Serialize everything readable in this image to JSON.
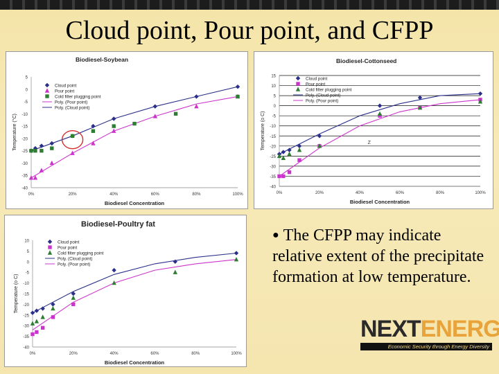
{
  "slide": {
    "title": "Cloud point, Pour point, and CFPP",
    "bullet": "The CFPP may indicate relative extent of the precipitate formation at low temperature."
  },
  "logo": {
    "part1": "NEXT",
    "part2": "ENERGY",
    "tagline": "Economic Security through Energy Diversity"
  },
  "colors": {
    "cloud": "#2a2f8a",
    "pour": "#cc33cc",
    "cfpp": "#2e7d32",
    "annotation": "#d62b2b"
  },
  "chart_data": [
    {
      "id": "soybean",
      "type": "scatter",
      "title": "Biodiesel-Soybean",
      "xlabel": "Biodiesel Concentration",
      "ylabel": "Temperature (°C)",
      "xlim": [
        0,
        100
      ],
      "ylim": [
        -40,
        5
      ],
      "x_ticks": [
        "0%",
        "20%",
        "40%",
        "60%",
        "80%",
        "100%"
      ],
      "x_tick_values": [
        0,
        20,
        40,
        60,
        80,
        100
      ],
      "y_ticks": [
        "5",
        "0",
        "-5",
        "-10",
        "-15",
        "-20",
        "-25",
        "-30",
        "-35",
        "-40"
      ],
      "y_tick_values": [
        5,
        0,
        -5,
        -10,
        -15,
        -20,
        -25,
        -30,
        -35,
        -40
      ],
      "legend": [
        "Cloud point",
        "Pour point",
        "Cold filter plugging point",
        "Poly. (Pour point)",
        "Poly. (Cloud point)"
      ],
      "series": [
        {
          "name": "Cloud point",
          "marker": "diamond",
          "x": [
            0,
            2,
            5,
            10,
            20,
            30,
            40,
            60,
            80,
            100
          ],
          "y": [
            -25,
            -24,
            -23,
            -22,
            -19,
            -15,
            -12,
            -7,
            -3,
            1
          ]
        },
        {
          "name": "Pour point",
          "marker": "triangle",
          "x": [
            0,
            2,
            5,
            10,
            20,
            30,
            40,
            60,
            80,
            100
          ],
          "y": [
            -36,
            -36,
            -33,
            -30,
            -26,
            -22,
            -17,
            -11,
            -7,
            -3
          ]
        },
        {
          "name": "Cold filter plugging point",
          "marker": "square",
          "x": [
            0,
            2,
            5,
            10,
            20,
            30,
            40,
            50,
            70,
            100
          ],
          "y": [
            -25,
            -25,
            -25,
            -24,
            -19,
            -17,
            -15,
            -14,
            -10,
            -3
          ]
        }
      ],
      "fits": [
        {
          "name": "Poly. (Pour point)",
          "style": "solid",
          "x": [
            0,
            20,
            40,
            60,
            80,
            100
          ],
          "y": [
            -36,
            -26,
            -17,
            -11,
            -6,
            -3
          ]
        },
        {
          "name": "Poly. (Cloud point)",
          "style": "solid",
          "x": [
            0,
            20,
            40,
            60,
            80,
            100
          ],
          "y": [
            -25,
            -19,
            -12,
            -7,
            -3,
            1
          ]
        }
      ]
    },
    {
      "id": "cottonseed",
      "type": "scatter",
      "title": "Biodiesel-Cottonseed",
      "xlabel": "Biodiesel Concentration",
      "ylabel": "Temperature (o C)",
      "xlim": [
        0,
        100
      ],
      "ylim": [
        -40,
        15
      ],
      "x_ticks": [
        "0%",
        "20%",
        "40%",
        "60%",
        "80%",
        "100%"
      ],
      "x_tick_values": [
        0,
        20,
        40,
        60,
        80,
        100
      ],
      "y_ticks": [
        "15",
        "10",
        "5",
        "0",
        "-5",
        "-10",
        "-15",
        "-20",
        "-25",
        "-30",
        "-35",
        "-40"
      ],
      "y_tick_values": [
        15,
        10,
        5,
        0,
        -5,
        -10,
        -15,
        -20,
        -25,
        -30,
        -35,
        -40
      ],
      "legend": [
        "Cloud point",
        "Pour point",
        "Cold filter plugging point",
        "Poly. (Cloud point)",
        "Poly. (Pour point)"
      ],
      "annotation": "Z",
      "series": [
        {
          "name": "Cloud point",
          "marker": "diamond",
          "x": [
            0,
            2,
            5,
            10,
            20,
            50,
            70,
            100
          ],
          "y": [
            -24,
            -23,
            -22,
            -20,
            -15,
            0,
            4,
            6
          ]
        },
        {
          "name": "Pour point",
          "marker": "square",
          "x": [
            0,
            2,
            5,
            10,
            20,
            50,
            70,
            100
          ],
          "y": [
            -35,
            -35,
            -33,
            -27,
            -20,
            -5,
            -1,
            3
          ]
        },
        {
          "name": "Cold filter plugging point",
          "marker": "triangle",
          "x": [
            0,
            2,
            5,
            10,
            20,
            50,
            70,
            100
          ],
          "y": [
            -25,
            -26,
            -24,
            -22,
            -20,
            -4,
            -1,
            2
          ]
        }
      ],
      "fits": [
        {
          "name": "Poly. (Cloud point)",
          "style": "solid",
          "x": [
            0,
            20,
            40,
            60,
            80,
            100
          ],
          "y": [
            -24,
            -14,
            -5,
            1,
            5,
            6
          ]
        },
        {
          "name": "Poly. (Pour point)",
          "style": "solid",
          "x": [
            0,
            20,
            40,
            60,
            80,
            100
          ],
          "y": [
            -35,
            -21,
            -10,
            -3,
            1,
            3
          ]
        }
      ]
    },
    {
      "id": "poultry",
      "type": "scatter",
      "title": "Biodiesel-Poultry fat",
      "xlabel": "Biodiesel Concentration",
      "ylabel": "Temperature (o C)",
      "xlim": [
        0,
        100
      ],
      "ylim": [
        -40,
        10
      ],
      "x_ticks": [
        "0%",
        "20%",
        "40%",
        "60%",
        "80%",
        "100%"
      ],
      "x_tick_values": [
        0,
        20,
        40,
        60,
        80,
        100
      ],
      "y_ticks": [
        "10",
        "5",
        "0",
        "-5",
        "-10",
        "-15",
        "-20",
        "-25",
        "-30",
        "-35",
        "-40"
      ],
      "y_tick_values": [
        10,
        5,
        0,
        -5,
        -10,
        -15,
        -20,
        -25,
        -30,
        -35,
        -40
      ],
      "legend": [
        "Cloud point",
        "Pour point",
        "Cold filter plugging point",
        "Poly. (Cloud point)",
        "Poly. (Pour point)"
      ],
      "series": [
        {
          "name": "Cloud point",
          "marker": "diamond",
          "x": [
            0,
            2,
            5,
            10,
            20,
            40,
            70,
            100
          ],
          "y": [
            -24,
            -23,
            -22,
            -20,
            -15,
            -4,
            0,
            4
          ]
        },
        {
          "name": "Pour point",
          "marker": "square",
          "x": [
            0,
            2,
            5,
            10,
            20
          ],
          "y": [
            -34,
            -33,
            -31,
            -26,
            -20
          ]
        },
        {
          "name": "Cold filter plugging point",
          "marker": "triangle",
          "x": [
            0,
            2,
            5,
            10,
            20,
            40,
            70,
            100
          ],
          "y": [
            -29,
            -28,
            -26,
            -22,
            -17,
            -10,
            -5,
            1
          ]
        }
      ],
      "fits": [
        {
          "name": "Poly. (Cloud point)",
          "style": "solid",
          "x": [
            0,
            20,
            40,
            60,
            80,
            100
          ],
          "y": [
            -24,
            -14,
            -6,
            -1,
            2,
            4
          ]
        },
        {
          "name": "Poly. (Pour point)",
          "style": "solid",
          "x": [
            0,
            20,
            40,
            60,
            80,
            100
          ],
          "y": [
            -32,
            -19,
            -10,
            -4,
            -1,
            1
          ]
        }
      ]
    }
  ]
}
